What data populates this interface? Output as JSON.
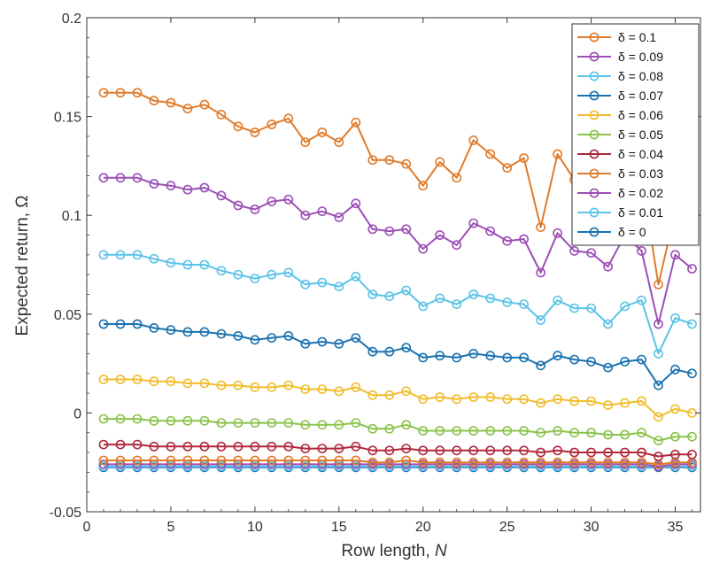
{
  "chart_data": {
    "type": "line",
    "title": "",
    "xlabel": "Row length, ",
    "xlabel_var": "N",
    "ylabel": "Expected return, Ω",
    "xlim": [
      0,
      36.5
    ],
    "ylim": [
      -0.05,
      0.2
    ],
    "xticks": [
      0,
      5,
      10,
      15,
      20,
      25,
      30,
      35
    ],
    "yticks": [
      -0.05,
      0,
      0.05,
      0.1,
      0.15,
      0.2
    ],
    "ytick_labels": [
      "-0.05",
      "0",
      "0.05",
      "0.1",
      "0.15",
      "0.2"
    ],
    "grid": false,
    "legend_position": "top-right",
    "x": [
      1,
      2,
      3,
      4,
      5,
      6,
      7,
      8,
      9,
      10,
      11,
      12,
      13,
      14,
      15,
      16,
      17,
      18,
      19,
      20,
      21,
      22,
      23,
      24,
      25,
      26,
      27,
      28,
      29,
      30,
      31,
      32,
      33,
      34,
      35,
      36
    ],
    "series": [
      {
        "name": "δ = 0.1",
        "color": "#e07b2a",
        "values": [
          0.162,
          0.162,
          0.162,
          0.158,
          0.157,
          0.154,
          0.156,
          0.151,
          0.145,
          0.142,
          0.146,
          0.149,
          0.137,
          0.142,
          0.137,
          0.147,
          0.128,
          0.128,
          0.126,
          0.115,
          0.127,
          0.119,
          0.138,
          0.131,
          0.124,
          0.129,
          0.094,
          0.131,
          0.118,
          0.112,
          0.114,
          0.116,
          0.119,
          0.065,
          0.102,
          0.101
        ]
      },
      {
        "name": "δ = 0.09",
        "color": "#9b4fb6",
        "values": [
          0.119,
          0.119,
          0.119,
          0.116,
          0.115,
          0.113,
          0.114,
          0.11,
          0.105,
          0.103,
          0.107,
          0.108,
          0.1,
          0.102,
          0.099,
          0.106,
          0.093,
          0.092,
          0.093,
          0.083,
          0.09,
          0.085,
          0.096,
          0.092,
          0.087,
          0.088,
          0.071,
          0.091,
          0.082,
          0.081,
          0.074,
          0.09,
          0.082,
          0.045,
          0.08,
          0.073
        ]
      },
      {
        "name": "δ = 0.08",
        "color": "#5cc3e8",
        "values": [
          0.08,
          0.08,
          0.08,
          0.078,
          0.076,
          0.075,
          0.075,
          0.072,
          0.07,
          0.068,
          0.07,
          0.071,
          0.065,
          0.066,
          0.064,
          0.069,
          0.06,
          0.059,
          0.062,
          0.054,
          0.058,
          0.055,
          0.06,
          0.058,
          0.056,
          0.055,
          0.047,
          0.057,
          0.053,
          0.053,
          0.045,
          0.054,
          0.057,
          0.03,
          0.048,
          0.045
        ]
      },
      {
        "name": "δ = 0.07",
        "color": "#1a72b0",
        "values": [
          0.045,
          0.045,
          0.045,
          0.043,
          0.042,
          0.041,
          0.041,
          0.04,
          0.039,
          0.037,
          0.038,
          0.039,
          0.035,
          0.036,
          0.035,
          0.038,
          0.031,
          0.031,
          0.033,
          0.028,
          0.029,
          0.028,
          0.03,
          0.029,
          0.028,
          0.028,
          0.024,
          0.029,
          0.027,
          0.026,
          0.023,
          0.026,
          0.027,
          0.014,
          0.022,
          0.02
        ]
      },
      {
        "name": "δ = 0.06",
        "color": "#f0bd2c",
        "values": [
          0.017,
          0.017,
          0.017,
          0.016,
          0.016,
          0.015,
          0.015,
          0.014,
          0.014,
          0.013,
          0.013,
          0.014,
          0.012,
          0.012,
          0.011,
          0.013,
          0.009,
          0.009,
          0.011,
          0.007,
          0.008,
          0.007,
          0.008,
          0.008,
          0.007,
          0.007,
          0.005,
          0.007,
          0.006,
          0.006,
          0.004,
          0.005,
          0.006,
          -0.002,
          0.002,
          0.0
        ]
      },
      {
        "name": "δ = 0.05",
        "color": "#8bc34a",
        "values": [
          -0.003,
          -0.003,
          -0.003,
          -0.004,
          -0.004,
          -0.004,
          -0.004,
          -0.005,
          -0.005,
          -0.005,
          -0.005,
          -0.005,
          -0.006,
          -0.006,
          -0.006,
          -0.005,
          -0.008,
          -0.008,
          -0.006,
          -0.009,
          -0.009,
          -0.009,
          -0.009,
          -0.009,
          -0.009,
          -0.009,
          -0.01,
          -0.009,
          -0.01,
          -0.01,
          -0.011,
          -0.011,
          -0.01,
          -0.014,
          -0.012,
          -0.012
        ]
      },
      {
        "name": "δ = 0.04",
        "color": "#b0283c",
        "values": [
          -0.016,
          -0.016,
          -0.016,
          -0.017,
          -0.017,
          -0.017,
          -0.017,
          -0.017,
          -0.017,
          -0.017,
          -0.017,
          -0.017,
          -0.018,
          -0.018,
          -0.018,
          -0.017,
          -0.019,
          -0.019,
          -0.018,
          -0.019,
          -0.019,
          -0.019,
          -0.019,
          -0.019,
          -0.019,
          -0.019,
          -0.02,
          -0.019,
          -0.02,
          -0.02,
          -0.02,
          -0.02,
          -0.02,
          -0.022,
          -0.021,
          -0.021
        ]
      },
      {
        "name": "δ = 0.03",
        "color": "#e07b2a",
        "values": [
          -0.024,
          -0.024,
          -0.024,
          -0.024,
          -0.024,
          -0.024,
          -0.024,
          -0.024,
          -0.024,
          -0.024,
          -0.024,
          -0.024,
          -0.024,
          -0.024,
          -0.024,
          -0.024,
          -0.025,
          -0.025,
          -0.024,
          -0.025,
          -0.025,
          -0.025,
          -0.025,
          -0.025,
          -0.025,
          -0.025,
          -0.025,
          -0.025,
          -0.025,
          -0.025,
          -0.025,
          -0.025,
          -0.025,
          -0.026,
          -0.025,
          -0.025
        ]
      },
      {
        "name": "δ = 0.02",
        "color": "#9b4fb6",
        "values": [
          -0.026,
          -0.026,
          -0.026,
          -0.026,
          -0.026,
          -0.026,
          -0.026,
          -0.026,
          -0.026,
          -0.026,
          -0.026,
          -0.026,
          -0.026,
          -0.026,
          -0.026,
          -0.026,
          -0.026,
          -0.026,
          -0.026,
          -0.026,
          -0.026,
          -0.026,
          -0.026,
          -0.026,
          -0.026,
          -0.026,
          -0.026,
          -0.026,
          -0.026,
          -0.026,
          -0.026,
          -0.026,
          -0.026,
          -0.027,
          -0.026,
          -0.026
        ]
      },
      {
        "name": "δ = 0.01",
        "color": "#5cc3e8",
        "values": [
          -0.027,
          -0.027,
          -0.027,
          -0.027,
          -0.027,
          -0.027,
          -0.027,
          -0.027,
          -0.027,
          -0.027,
          -0.027,
          -0.027,
          -0.027,
          -0.027,
          -0.027,
          -0.027,
          -0.027,
          -0.027,
          -0.027,
          -0.027,
          -0.027,
          -0.027,
          -0.027,
          -0.027,
          -0.027,
          -0.027,
          -0.027,
          -0.027,
          -0.027,
          -0.027,
          -0.027,
          -0.027,
          -0.027,
          -0.027,
          -0.027,
          -0.027
        ]
      },
      {
        "name": "δ = 0",
        "color": "#1a72b0",
        "values": [
          -0.0275,
          -0.0275,
          -0.0275,
          -0.0275,
          -0.0275,
          -0.0275,
          -0.0275,
          -0.0275,
          -0.0275,
          -0.0275,
          -0.0275,
          -0.0275,
          -0.0275,
          -0.0275,
          -0.0275,
          -0.0275,
          -0.0275,
          -0.0275,
          -0.0275,
          -0.0275,
          -0.0275,
          -0.0275,
          -0.0275,
          -0.0275,
          -0.0275,
          -0.0275,
          -0.0275,
          -0.0275,
          -0.0275,
          -0.0275,
          -0.0275,
          -0.0275,
          -0.0275,
          -0.0275,
          -0.0275,
          -0.0275
        ]
      }
    ]
  }
}
